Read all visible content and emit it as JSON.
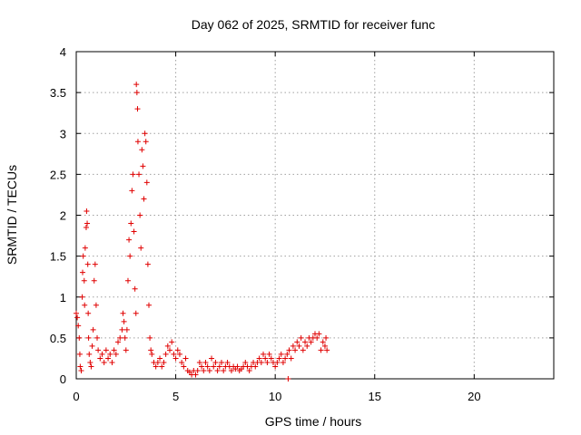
{
  "chart_data": {
    "type": "scatter",
    "title": "Day 062 of 2025, SRMTID for receiver func",
    "xlabel": "GPS time / hours",
    "ylabel": "SRMTID / TECUs",
    "xlim": [
      0,
      24
    ],
    "ylim": [
      0,
      4
    ],
    "xticks": [
      0,
      5,
      10,
      15,
      20
    ],
    "xtick_labels": [
      "0",
      "5",
      "10",
      "15",
      "20"
    ],
    "yticks": [
      0,
      0.5,
      1,
      1.5,
      2,
      2.5,
      3,
      3.5,
      4
    ],
    "ytick_labels": [
      "0",
      "0.5",
      "1",
      "1.5",
      "2",
      "2.5",
      "3",
      "3.5",
      "4"
    ],
    "grid": true,
    "marker": "+",
    "color": "#e00000",
    "series": [
      {
        "name": "SRMTID",
        "points": [
          [
            0.0,
            0.8
          ],
          [
            0.05,
            0.75
          ],
          [
            0.1,
            0.65
          ],
          [
            0.15,
            0.5
          ],
          [
            0.18,
            0.3
          ],
          [
            0.2,
            0.15
          ],
          [
            0.25,
            0.1
          ],
          [
            0.3,
            1.0
          ],
          [
            0.32,
            1.3
          ],
          [
            0.35,
            1.5
          ],
          [
            0.4,
            1.2
          ],
          [
            0.42,
            0.9
          ],
          [
            0.45,
            1.6
          ],
          [
            0.5,
            1.85
          ],
          [
            0.52,
            2.05
          ],
          [
            0.55,
            1.9
          ],
          [
            0.58,
            1.4
          ],
          [
            0.6,
            0.8
          ],
          [
            0.62,
            0.5
          ],
          [
            0.65,
            0.3
          ],
          [
            0.7,
            0.2
          ],
          [
            0.75,
            0.15
          ],
          [
            0.8,
            0.4
          ],
          [
            0.85,
            0.6
          ],
          [
            0.9,
            1.2
          ],
          [
            0.95,
            1.4
          ],
          [
            1.0,
            0.9
          ],
          [
            1.05,
            0.5
          ],
          [
            1.1,
            0.35
          ],
          [
            1.2,
            0.25
          ],
          [
            1.3,
            0.3
          ],
          [
            1.4,
            0.2
          ],
          [
            1.5,
            0.35
          ],
          [
            1.6,
            0.25
          ],
          [
            1.7,
            0.3
          ],
          [
            1.8,
            0.2
          ],
          [
            1.9,
            0.35
          ],
          [
            2.0,
            0.3
          ],
          [
            2.1,
            0.45
          ],
          [
            2.2,
            0.5
          ],
          [
            2.3,
            0.6
          ],
          [
            2.35,
            0.8
          ],
          [
            2.4,
            0.7
          ],
          [
            2.45,
            0.5
          ],
          [
            2.5,
            0.35
          ],
          [
            2.55,
            0.6
          ],
          [
            2.6,
            1.2
          ],
          [
            2.65,
            1.7
          ],
          [
            2.7,
            1.5
          ],
          [
            2.75,
            1.9
          ],
          [
            2.8,
            2.3
          ],
          [
            2.85,
            2.5
          ],
          [
            2.9,
            1.8
          ],
          [
            2.95,
            1.1
          ],
          [
            3.0,
            0.8
          ],
          [
            3.02,
            3.6
          ],
          [
            3.05,
            3.5
          ],
          [
            3.08,
            3.3
          ],
          [
            3.1,
            2.9
          ],
          [
            3.15,
            2.5
          ],
          [
            3.2,
            2.0
          ],
          [
            3.25,
            1.6
          ],
          [
            3.3,
            2.8
          ],
          [
            3.35,
            2.6
          ],
          [
            3.4,
            2.2
          ],
          [
            3.45,
            3.0
          ],
          [
            3.5,
            2.9
          ],
          [
            3.55,
            2.4
          ],
          [
            3.6,
            1.4
          ],
          [
            3.65,
            0.9
          ],
          [
            3.7,
            0.5
          ],
          [
            3.75,
            0.35
          ],
          [
            3.8,
            0.3
          ],
          [
            3.9,
            0.2
          ],
          [
            4.0,
            0.15
          ],
          [
            4.1,
            0.2
          ],
          [
            4.2,
            0.25
          ],
          [
            4.3,
            0.15
          ],
          [
            4.4,
            0.2
          ],
          [
            4.5,
            0.3
          ],
          [
            4.6,
            0.4
          ],
          [
            4.7,
            0.35
          ],
          [
            4.8,
            0.45
          ],
          [
            4.9,
            0.3
          ],
          [
            5.0,
            0.25
          ],
          [
            5.1,
            0.35
          ],
          [
            5.2,
            0.3
          ],
          [
            5.3,
            0.2
          ],
          [
            5.4,
            0.15
          ],
          [
            5.5,
            0.25
          ],
          [
            5.6,
            0.1
          ],
          [
            5.7,
            0.08
          ],
          [
            5.8,
            0.05
          ],
          [
            5.9,
            0.1
          ],
          [
            6.0,
            0.05
          ],
          [
            6.1,
            0.1
          ],
          [
            6.2,
            0.2
          ],
          [
            6.3,
            0.15
          ],
          [
            6.4,
            0.1
          ],
          [
            6.5,
            0.2
          ],
          [
            6.6,
            0.15
          ],
          [
            6.7,
            0.1
          ],
          [
            6.8,
            0.25
          ],
          [
            6.9,
            0.15
          ],
          [
            7.0,
            0.2
          ],
          [
            7.1,
            0.1
          ],
          [
            7.2,
            0.15
          ],
          [
            7.3,
            0.2
          ],
          [
            7.4,
            0.1
          ],
          [
            7.5,
            0.15
          ],
          [
            7.6,
            0.2
          ],
          [
            7.7,
            0.15
          ],
          [
            7.8,
            0.1
          ],
          [
            7.9,
            0.15
          ],
          [
            8.0,
            0.12
          ],
          [
            8.1,
            0.15
          ],
          [
            8.2,
            0.1
          ],
          [
            8.3,
            0.12
          ],
          [
            8.4,
            0.15
          ],
          [
            8.5,
            0.2
          ],
          [
            8.6,
            0.15
          ],
          [
            8.7,
            0.1
          ],
          [
            8.8,
            0.15
          ],
          [
            8.9,
            0.2
          ],
          [
            9.0,
            0.15
          ],
          [
            9.1,
            0.2
          ],
          [
            9.2,
            0.25
          ],
          [
            9.3,
            0.2
          ],
          [
            9.4,
            0.3
          ],
          [
            9.5,
            0.25
          ],
          [
            9.6,
            0.2
          ],
          [
            9.7,
            0.3
          ],
          [
            9.8,
            0.25
          ],
          [
            9.9,
            0.2
          ],
          [
            10.0,
            0.15
          ],
          [
            10.1,
            0.2
          ],
          [
            10.2,
            0.25
          ],
          [
            10.3,
            0.3
          ],
          [
            10.4,
            0.2
          ],
          [
            10.5,
            0.25
          ],
          [
            10.6,
            0.3
          ],
          [
            10.65,
            0.0
          ],
          [
            10.7,
            0.35
          ],
          [
            10.8,
            0.25
          ],
          [
            10.9,
            0.4
          ],
          [
            11.0,
            0.35
          ],
          [
            11.1,
            0.45
          ],
          [
            11.2,
            0.4
          ],
          [
            11.3,
            0.5
          ],
          [
            11.4,
            0.35
          ],
          [
            11.5,
            0.45
          ],
          [
            11.6,
            0.4
          ],
          [
            11.7,
            0.5
          ],
          [
            11.8,
            0.45
          ],
          [
            11.9,
            0.5
          ],
          [
            12.0,
            0.55
          ],
          [
            12.1,
            0.5
          ],
          [
            12.2,
            0.55
          ],
          [
            12.3,
            0.35
          ],
          [
            12.4,
            0.45
          ],
          [
            12.5,
            0.4
          ],
          [
            12.55,
            0.5
          ],
          [
            12.6,
            0.35
          ]
        ]
      }
    ]
  }
}
